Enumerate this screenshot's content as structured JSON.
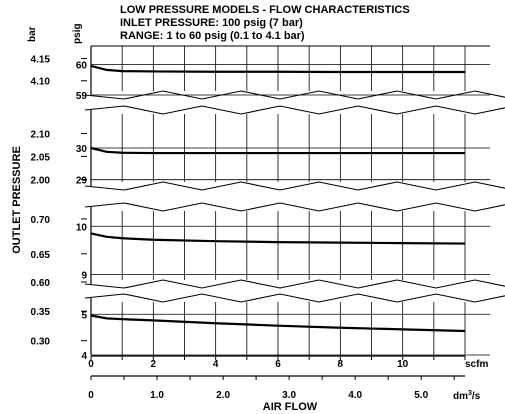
{
  "chart_data": {
    "type": "line",
    "title_lines": [
      "LOW PRESSURE MODELS - FLOW CHARACTERISTICS",
      "INLET PRESSURE: 100 psig (7 bar)",
      "RANGE: 1 to 60 psig (0.1 to 4.1 bar)"
    ],
    "ylabel": "OUTLET PRESSURE",
    "xlabel": "AIR FLOW",
    "x_unit_primary": "scfm",
    "x_unit_secondary": "dm³/s",
    "x_unit_secondary_base": "dm",
    "x_unit_secondary_sup": "3",
    "x_unit_secondary_tail": "/s",
    "y_unit_left": "bar",
    "y_unit_right": "psig",
    "x_primary_range": [
      0,
      12
    ],
    "x_primary_ticks": [
      "0",
      "2",
      "4",
      "6",
      "8",
      "10"
    ],
    "x_secondary_ticks": [
      {
        "label": "0",
        "value": 0
      },
      {
        "label": "1.0",
        "value": 1.0
      },
      {
        "label": "2.0",
        "value": 2.0
      },
      {
        "label": "3.0",
        "value": 3.0
      },
      {
        "label": "4.0",
        "value": 4.0
      },
      {
        "label": "5.0",
        "value": 5.0
      }
    ],
    "grid": true,
    "panels": [
      {
        "psig_range": [
          59,
          60.6
        ],
        "psig_ticks": [
          "60",
          "59"
        ],
        "psig_tick_values": [
          60,
          59
        ],
        "bar_ticks": [
          "4.15",
          "4.10"
        ],
        "bar_tick_values": [
          4.15,
          4.1
        ],
        "top_broken": false,
        "bottom_broken": true,
        "series": {
          "x": [
            0,
            0.5,
            1,
            2,
            4,
            6,
            8,
            10,
            12
          ],
          "y": [
            59.95,
            59.82,
            59.78,
            59.77,
            59.76,
            59.76,
            59.75,
            59.75,
            59.75
          ]
        }
      },
      {
        "psig_range": [
          28.8,
          31.2
        ],
        "psig_ticks": [
          "30",
          "29"
        ],
        "psig_tick_values": [
          30,
          29
        ],
        "bar_ticks": [
          "2.10",
          "2.05",
          "2.00"
        ],
        "bar_tick_values": [
          2.1,
          2.05,
          2.0
        ],
        "top_broken": true,
        "bottom_broken": true,
        "series": {
          "x": [
            0,
            0.5,
            1,
            2,
            4,
            6,
            8,
            10,
            12
          ],
          "y": [
            30.0,
            29.88,
            29.85,
            29.84,
            29.84,
            29.84,
            29.84,
            29.84,
            29.84
          ]
        }
      },
      {
        "psig_range": [
          8.8,
          10.4
        ],
        "psig_ticks": [
          "10",
          "9"
        ],
        "psig_tick_values": [
          10,
          9
        ],
        "bar_ticks": [
          "0.70",
          "0.65",
          "0.60"
        ],
        "bar_tick_values": [
          0.7,
          0.65,
          0.6
        ],
        "top_broken": true,
        "bottom_broken": true,
        "series": {
          "x": [
            0,
            0.5,
            1,
            2,
            4,
            6,
            8,
            10,
            12
          ],
          "y": [
            9.85,
            9.78,
            9.75,
            9.72,
            9.69,
            9.67,
            9.66,
            9.65,
            9.64
          ]
        }
      },
      {
        "psig_range": [
          4.0,
          5.4
        ],
        "psig_ticks": [
          "5",
          "4"
        ],
        "psig_tick_values": [
          5,
          4
        ],
        "bar_ticks": [
          "0.35",
          "0.30"
        ],
        "bar_tick_values": [
          0.35,
          0.3
        ],
        "top_broken": true,
        "bottom_broken": false,
        "series": {
          "x": [
            0,
            0.5,
            1,
            2,
            4,
            6,
            8,
            10,
            12
          ],
          "y": [
            4.97,
            4.9,
            4.88,
            4.85,
            4.78,
            4.72,
            4.67,
            4.63,
            4.59
          ]
        }
      }
    ]
  }
}
